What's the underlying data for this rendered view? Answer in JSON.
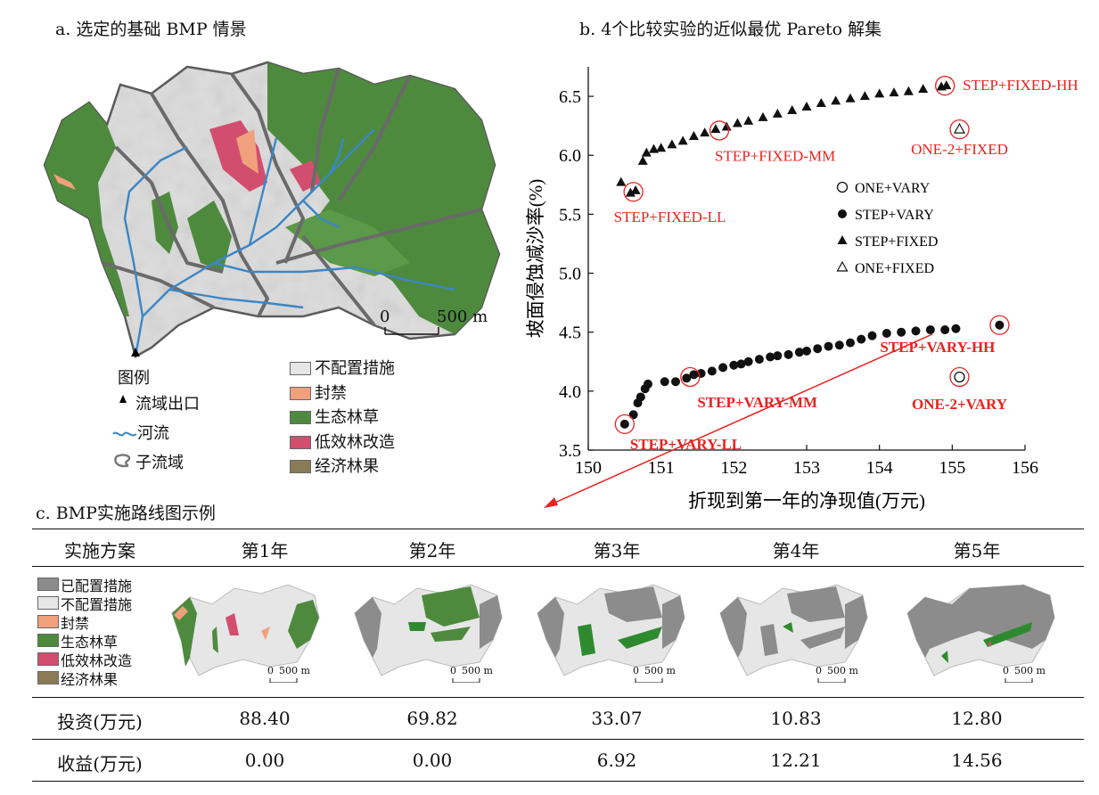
{
  "panel_a": {
    "title": "a. 选定的基础 BMP 情景",
    "scale_zero": "0",
    "scale_label": "500 m",
    "legend_title": "图例",
    "legend_left": [
      {
        "icon": "triangle-icon",
        "label": "流域出口"
      },
      {
        "icon": "river-line-icon",
        "label": "河流"
      },
      {
        "icon": "subbasin-outline-icon",
        "label": "子流域"
      }
    ],
    "legend_right": [
      {
        "color": "#e6e6e6",
        "label": "不配置措施"
      },
      {
        "color": "#f0a07c",
        "label": "封禁"
      },
      {
        "color": "#4e8a3e",
        "label": "生态林草"
      },
      {
        "color": "#d24e6e",
        "label": "低效林改造"
      },
      {
        "color": "#8a7a55",
        "label": "经济林果"
      }
    ]
  },
  "panel_b": {
    "title": "b. 4个比较实验的近似最优 Pareto 解集"
  },
  "chart_data": {
    "type": "scatter",
    "xlabel": "折现到第一年的净现值(万元)",
    "ylabel": "坡面侵蚀减沙率(%)",
    "xlim": [
      150,
      156
    ],
    "ylim": [
      3.5,
      6.75
    ],
    "xticks": [
      "150",
      "151",
      "152",
      "153",
      "154",
      "155",
      "156"
    ],
    "yticks": [
      "3.5",
      "4.0",
      "4.5",
      "5.0",
      "5.5",
      "6.0",
      "6.5"
    ],
    "legend_position": "right-middle",
    "series": [
      {
        "name": "ONE+VARY",
        "marker": "circle-open",
        "points": [
          [
            155.1,
            4.12
          ]
        ]
      },
      {
        "name": "STEP+VARY",
        "marker": "circle-filled",
        "points": [
          [
            150.5,
            3.72
          ],
          [
            150.62,
            3.8
          ],
          [
            150.68,
            3.9
          ],
          [
            150.72,
            3.95
          ],
          [
            150.78,
            4.02
          ],
          [
            150.82,
            4.06
          ],
          [
            151.05,
            4.08
          ],
          [
            151.2,
            4.08
          ],
          [
            151.35,
            4.11
          ],
          [
            151.45,
            4.14
          ],
          [
            151.55,
            4.15
          ],
          [
            151.7,
            4.17
          ],
          [
            151.85,
            4.2
          ],
          [
            152.0,
            4.22
          ],
          [
            152.1,
            4.23
          ],
          [
            152.2,
            4.25
          ],
          [
            152.35,
            4.27
          ],
          [
            152.5,
            4.29
          ],
          [
            152.6,
            4.3
          ],
          [
            152.75,
            4.31
          ],
          [
            152.9,
            4.33
          ],
          [
            153.0,
            4.34
          ],
          [
            153.15,
            4.36
          ],
          [
            153.3,
            4.38
          ],
          [
            153.45,
            4.39
          ],
          [
            153.6,
            4.41
          ],
          [
            153.75,
            4.44
          ],
          [
            153.9,
            4.47
          ],
          [
            154.1,
            4.49
          ],
          [
            154.3,
            4.5
          ],
          [
            154.5,
            4.51
          ],
          [
            154.7,
            4.52
          ],
          [
            154.9,
            4.52
          ],
          [
            155.05,
            4.53
          ],
          [
            155.65,
            4.56
          ]
        ]
      },
      {
        "name": "STEP+FIXED",
        "marker": "triangle-filled",
        "points": [
          [
            150.45,
            5.77
          ],
          [
            150.58,
            5.68
          ],
          [
            150.65,
            5.7
          ],
          [
            150.75,
            5.95
          ],
          [
            150.8,
            6.02
          ],
          [
            150.9,
            6.05
          ],
          [
            151.0,
            6.06
          ],
          [
            151.15,
            6.09
          ],
          [
            151.3,
            6.12
          ],
          [
            151.45,
            6.16
          ],
          [
            151.6,
            6.19
          ],
          [
            151.75,
            6.22
          ],
          [
            151.9,
            6.24
          ],
          [
            152.05,
            6.27
          ],
          [
            152.2,
            6.29
          ],
          [
            152.4,
            6.32
          ],
          [
            152.6,
            6.35
          ],
          [
            152.8,
            6.38
          ],
          [
            153.0,
            6.41
          ],
          [
            153.2,
            6.44
          ],
          [
            153.4,
            6.46
          ],
          [
            153.6,
            6.48
          ],
          [
            153.8,
            6.5
          ],
          [
            154.0,
            6.52
          ],
          [
            154.2,
            6.53
          ],
          [
            154.4,
            6.54
          ],
          [
            154.6,
            6.56
          ],
          [
            154.85,
            6.58
          ],
          [
            154.92,
            6.59
          ]
        ]
      },
      {
        "name": "ONE+FIXED",
        "marker": "triangle-open",
        "points": [
          [
            155.1,
            6.22
          ]
        ]
      }
    ],
    "annotations": [
      {
        "label": "STEP+FIXED-HH",
        "x": 154.9,
        "y": 6.59,
        "color": "#e8231f",
        "bold": false
      },
      {
        "label": "STEP+FIXED-MM",
        "x": 151.8,
        "y": 6.21,
        "color": "#e8231f",
        "bold": false
      },
      {
        "label": "STEP+FIXED-LL",
        "x": 150.62,
        "y": 5.69,
        "color": "#e8231f",
        "bold": false
      },
      {
        "label": "ONE-2+FIXED",
        "x": 155.1,
        "y": 6.22,
        "color": "#e8231f",
        "bold": false
      },
      {
        "label": "STEP+VARY-HH",
        "x": 155.65,
        "y": 4.56,
        "color": "#e8231f",
        "bold": true
      },
      {
        "label": "STEP+VARY-MM",
        "x": 151.4,
        "y": 4.12,
        "color": "#e8231f",
        "bold": true
      },
      {
        "label": "STEP+VARY-LL",
        "x": 150.5,
        "y": 3.72,
        "color": "#e8231f",
        "bold": true
      },
      {
        "label": "ONE-2+VARY",
        "x": 155.1,
        "y": 4.12,
        "color": "#e8231f",
        "bold": true
      }
    ]
  },
  "panel_c": {
    "title": "c. BMP实施路线图示例",
    "header": {
      "col0": "实施方案",
      "years": [
        "第1年",
        "第2年",
        "第3年",
        "第4年",
        "第5年"
      ]
    },
    "legend": [
      {
        "color": "#8c8c8c",
        "label": "已配置措施"
      },
      {
        "color": "#e6e6e6",
        "label": "不配置措施"
      },
      {
        "color": "#f0a07c",
        "label": "封禁"
      },
      {
        "color": "#4e8a3e",
        "label": "生态林草"
      },
      {
        "color": "#d24e6e",
        "label": "低效林改造"
      },
      {
        "color": "#8a7a55",
        "label": "经济林果"
      }
    ],
    "scale_zero": "0",
    "scale_label": "500 m",
    "rows": [
      {
        "label": "投资(万元)",
        "values": [
          "88.40",
          "69.82",
          "33.07",
          "10.83",
          "12.80"
        ]
      },
      {
        "label": "收益(万元)",
        "values": [
          "0.00",
          "0.00",
          "6.92",
          "12.21",
          "14.56"
        ]
      }
    ]
  }
}
